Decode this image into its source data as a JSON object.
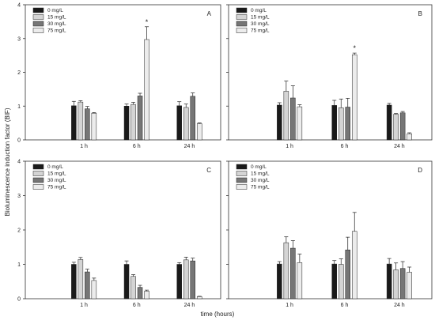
{
  "figure": {
    "ylabel": "Bioluminescence induction factor (BIF)",
    "xlabel": "time (hours)"
  },
  "colors": {
    "0 mg/L": "#1a1a1a",
    "15 mg/L": "#d4d4d4",
    "30 mg/L": "#767676",
    "75 mg/L": "#ececec"
  },
  "chart_data": [
    {
      "type": "bar",
      "panel": "A",
      "categories": [
        "1 h",
        "6 h",
        "24 h"
      ],
      "ylim": [
        0,
        4
      ],
      "yticks": [
        0,
        1,
        2,
        3,
        4
      ],
      "legend_position": "top-left",
      "series": [
        {
          "name": "0 mg/L",
          "values": [
            1.01,
            1.0,
            1.01
          ],
          "errors": [
            0.13,
            0.06,
            0.12
          ]
        },
        {
          "name": "15 mg/L",
          "values": [
            1.12,
            1.05,
            0.96
          ],
          "errors": [
            0.04,
            0.06,
            0.1
          ]
        },
        {
          "name": "30 mg/L",
          "values": [
            0.92,
            1.3,
            1.29
          ],
          "errors": [
            0.07,
            0.08,
            0.1
          ]
        },
        {
          "name": "75 mg/L",
          "values": [
            0.79,
            2.97,
            0.48
          ],
          "errors": [
            0.02,
            0.38,
            0.02
          ]
        }
      ],
      "annotations": [
        {
          "category": "6 h",
          "series": "75 mg/L",
          "text": "*"
        }
      ]
    },
    {
      "type": "bar",
      "panel": "B",
      "categories": [
        "1 h",
        "6 h",
        "24 h"
      ],
      "ylim": [
        0,
        4
      ],
      "yticks": [
        0,
        1,
        2,
        3,
        4
      ],
      "legend_position": "top-left",
      "series": [
        {
          "name": "0 mg/L",
          "values": [
            1.03,
            1.02,
            1.03
          ],
          "errors": [
            0.07,
            0.15,
            0.05
          ]
        },
        {
          "name": "15 mg/L",
          "values": [
            1.44,
            0.95,
            0.76
          ],
          "errors": [
            0.3,
            0.26,
            0.02
          ]
        },
        {
          "name": "30 mg/L",
          "values": [
            1.24,
            0.97,
            0.8
          ],
          "errors": [
            0.36,
            0.26,
            0.04
          ]
        },
        {
          "name": "75 mg/L",
          "values": [
            0.98,
            2.52,
            0.18
          ],
          "errors": [
            0.06,
            0.05,
            0.03
          ]
        }
      ],
      "annotations": [
        {
          "category": "6 h",
          "series": "75 mg/L",
          "text": "*"
        }
      ]
    },
    {
      "type": "bar",
      "panel": "C",
      "categories": [
        "1 h",
        "6 h",
        "24 h"
      ],
      "ylim": [
        0,
        4
      ],
      "yticks": [
        0,
        1,
        2,
        3,
        4
      ],
      "legend_position": "top-left",
      "series": [
        {
          "name": "0 mg/L",
          "values": [
            1.0,
            1.0,
            1.0
          ],
          "errors": [
            0.06,
            0.1,
            0.05
          ]
        },
        {
          "name": "15 mg/L",
          "values": [
            1.14,
            0.65,
            1.13
          ],
          "errors": [
            0.06,
            0.05,
            0.08
          ]
        },
        {
          "name": "30 mg/L",
          "values": [
            0.78,
            0.33,
            1.1
          ],
          "errors": [
            0.08,
            0.06,
            0.08
          ]
        },
        {
          "name": "75 mg/L",
          "values": [
            0.53,
            0.22,
            0.06
          ],
          "errors": [
            0.07,
            0.03,
            0.01
          ]
        }
      ],
      "annotations": []
    },
    {
      "type": "bar",
      "panel": "D",
      "categories": [
        "1 h",
        "6 h",
        "24 h"
      ],
      "ylim": [
        0,
        4
      ],
      "yticks": [
        0,
        1,
        2,
        3,
        4
      ],
      "legend_position": "top-left",
      "series": [
        {
          "name": "0 mg/L",
          "values": [
            1.01,
            1.01,
            1.01
          ],
          "errors": [
            0.07,
            0.1,
            0.16
          ]
        },
        {
          "name": "15 mg/L",
          "values": [
            1.63,
            1.0,
            0.84
          ],
          "errors": [
            0.17,
            0.16,
            0.2
          ]
        },
        {
          "name": "30 mg/L",
          "values": [
            1.47,
            1.42,
            0.88
          ],
          "errors": [
            0.22,
            0.37,
            0.2
          ]
        },
        {
          "name": "75 mg/L",
          "values": [
            1.05,
            1.96,
            0.77
          ],
          "errors": [
            0.25,
            0.55,
            0.15
          ]
        }
      ],
      "annotations": []
    }
  ]
}
